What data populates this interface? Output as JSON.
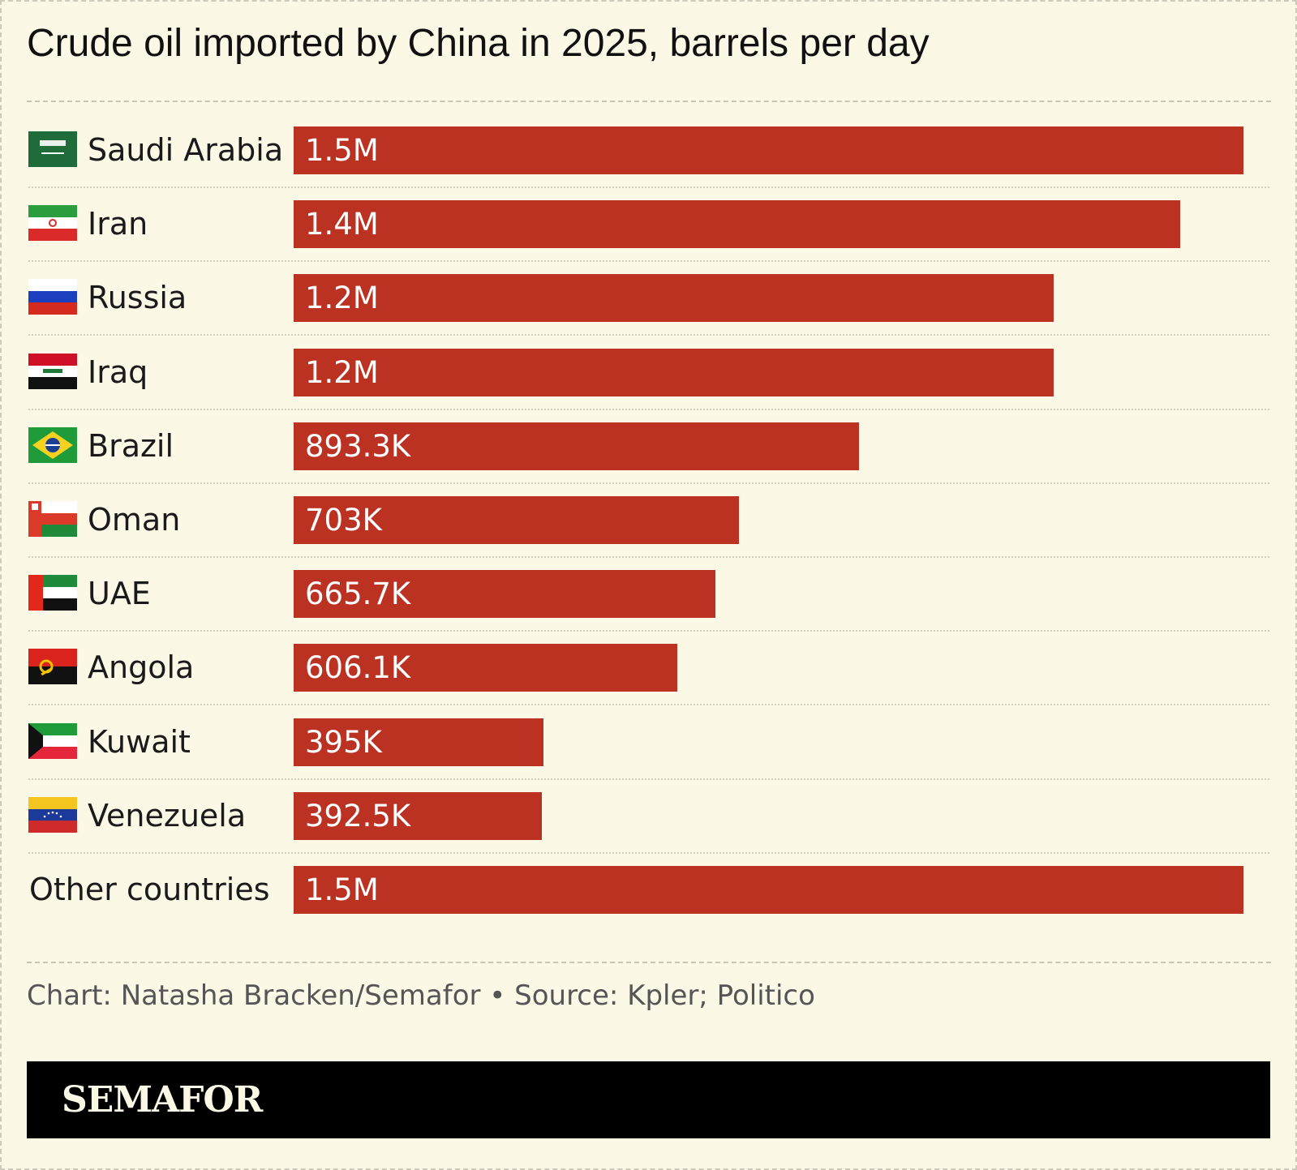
{
  "title": "Crude oil imported by China in 2025, barrels per day",
  "credit": "Chart: Natasha Bracken/Semafor • Source: Kpler; Politico",
  "logo": "SEMAFOR",
  "colors": {
    "background": "#fcf8e6",
    "bar": "#bb3223",
    "footer": "#000000"
  },
  "chart_data": {
    "type": "bar",
    "orientation": "horizontal",
    "title": "Crude oil imported by China in 2025, barrels per day",
    "categories": [
      "Saudi Arabia",
      "Iran",
      "Russia",
      "Iraq",
      "Brazil",
      "Oman",
      "UAE",
      "Angola",
      "Kuwait",
      "Venezuela",
      "Other countries"
    ],
    "values": [
      1500000,
      1400000,
      1200000,
      1200000,
      893300,
      703000,
      665700,
      606100,
      395000,
      392500,
      1500000
    ],
    "value_labels": [
      "1.5M",
      "1.4M",
      "1.2M",
      "1.2M",
      "893.3K",
      "703K",
      "665.7K",
      "606.1K",
      "395K",
      "392.5K",
      "1.5M"
    ],
    "flags": [
      "saudi-arabia-flag-icon",
      "iran-flag-icon",
      "russia-flag-icon",
      "iraq-flag-icon",
      "brazil-flag-icon",
      "oman-flag-icon",
      "uae-flag-icon",
      "angola-flag-icon",
      "kuwait-flag-icon",
      "venezuela-flag-icon",
      ""
    ],
    "xlim": [
      0,
      1500000
    ],
    "grid": false,
    "legend": "none"
  }
}
